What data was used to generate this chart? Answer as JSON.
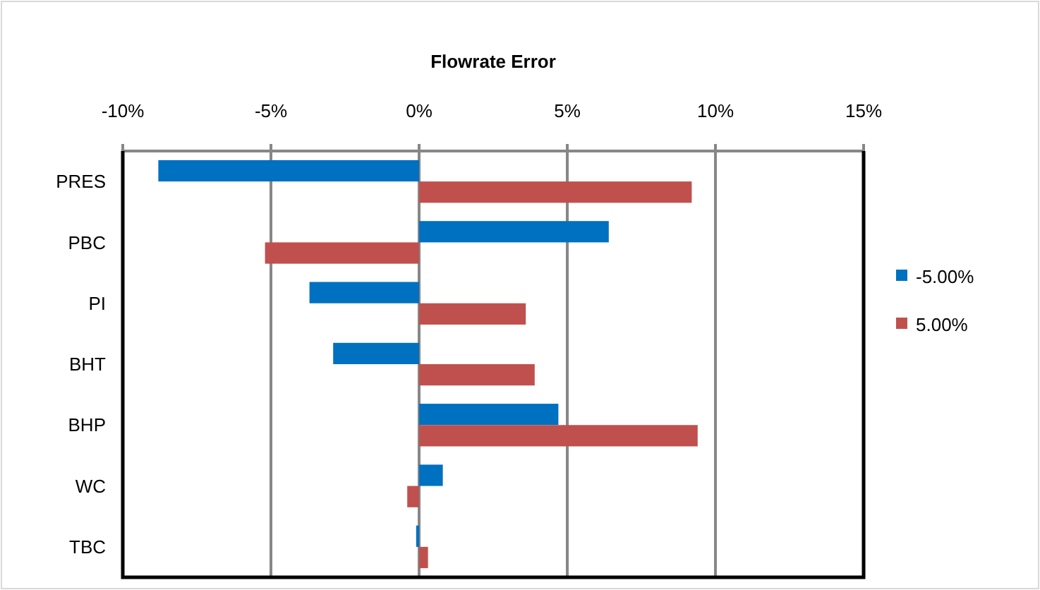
{
  "chart_data": {
    "type": "bar",
    "orientation": "horizontal",
    "title": "Flowrate Error",
    "categories": [
      "PRES",
      "PBC",
      "PI",
      "BHT",
      "BHP",
      "WC",
      "TBC"
    ],
    "series": [
      {
        "name": "-5.00%",
        "color": "#0070c0",
        "values": [
          -8.8,
          6.4,
          -3.7,
          -2.9,
          4.7,
          0.8,
          -0.1
        ]
      },
      {
        "name": "5.00%",
        "color": "#c0504d",
        "values": [
          9.2,
          -5.2,
          3.6,
          3.9,
          9.4,
          -0.4,
          0.3
        ]
      }
    ],
    "xlim": [
      -10,
      15
    ],
    "xticks": [
      {
        "value": -10,
        "label": "-10%"
      },
      {
        "value": -5,
        "label": "-5%"
      },
      {
        "value": 0,
        "label": "0%"
      },
      {
        "value": 5,
        "label": "5%"
      },
      {
        "value": 10,
        "label": "10%"
      },
      {
        "value": 15,
        "label": "15%"
      }
    ],
    "grid": "x",
    "legend": "right"
  }
}
